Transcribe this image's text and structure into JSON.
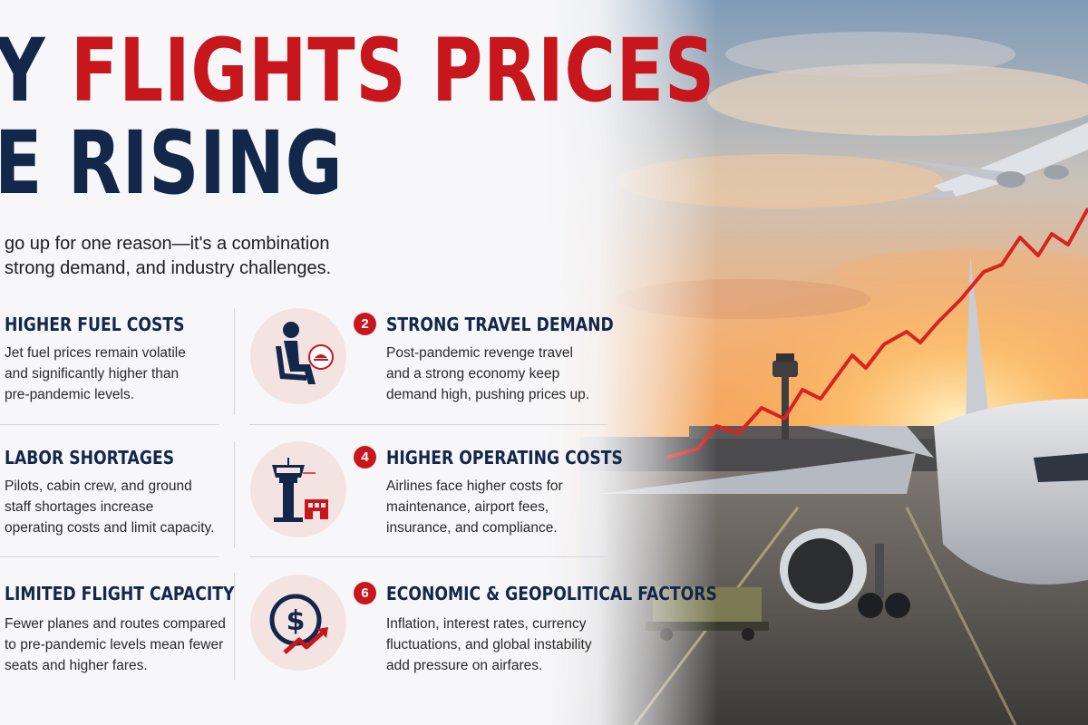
{
  "title": {
    "line1_dark": "Y",
    "line1_red": "FLIGHTS PRICES",
    "line2_dark": "E RISING"
  },
  "intro": {
    "line1": "go up for one reason—it's a combination",
    "line2": "strong demand, and industry challenges."
  },
  "factors": [
    {
      "number": "",
      "title": "HIGHER FUEL COSTS",
      "lines": [
        "Jet fuel prices remain volatile",
        "and significantly higher than",
        "pre-pandemic levels."
      ]
    },
    {
      "number": "2",
      "title": "STRONG TRAVEL DEMAND",
      "icon": "traveler-seat-icon",
      "lines": [
        "Post-pandemic revenge travel",
        "and a strong economy keep",
        "demand high, pushing prices up."
      ]
    },
    {
      "number": "",
      "title": "LABOR SHORTAGES",
      "lines": [
        "Pilots, cabin crew, and ground",
        "staff shortages increase",
        "operating costs and limit capacity."
      ]
    },
    {
      "number": "4",
      "title": "HIGHER OPERATING COSTS",
      "icon": "control-tower-icon",
      "lines": [
        "Airlines face higher costs for",
        "maintenance, airport fees,",
        "insurance, and compliance."
      ]
    },
    {
      "number": "",
      "title": "LIMITED FLIGHT CAPACITY",
      "lines": [
        "Fewer planes and routes compared",
        "to pre-pandemic levels mean fewer",
        "seats and higher fares."
      ]
    },
    {
      "number": "6",
      "title": "ECONOMIC & GEOPOLITICAL FACTORS",
      "icon": "dollar-trend-icon",
      "lines": [
        "Inflation, interest rates, currency",
        "fluctuations, and global instability",
        "add pressure on airfares."
      ]
    }
  ],
  "colors": {
    "navy": "#13274b",
    "red": "#c8161d",
    "icon_bg": "#f3e4e2"
  }
}
